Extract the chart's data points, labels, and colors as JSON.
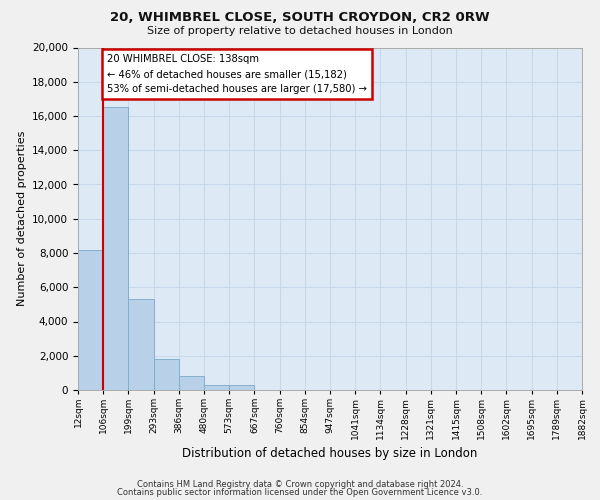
{
  "title1": "20, WHIMBREL CLOSE, SOUTH CROYDON, CR2 0RW",
  "title2": "Size of property relative to detached houses in London",
  "xlabel": "Distribution of detached houses by size in London",
  "ylabel": "Number of detached properties",
  "bin_labels": [
    "12sqm",
    "106sqm",
    "199sqm",
    "293sqm",
    "386sqm",
    "480sqm",
    "573sqm",
    "667sqm",
    "760sqm",
    "854sqm",
    "947sqm",
    "1041sqm",
    "1134sqm",
    "1228sqm",
    "1321sqm",
    "1415sqm",
    "1508sqm",
    "1602sqm",
    "1695sqm",
    "1789sqm",
    "1882sqm"
  ],
  "bar_heights": [
    8200,
    16500,
    5300,
    1820,
    800,
    270,
    270,
    0,
    0,
    0,
    0,
    0,
    0,
    0,
    0,
    0,
    0,
    0,
    0,
    0
  ],
  "bar_color": "#b8d0e8",
  "bar_edge_color": "#7aaac8",
  "property_line_x": 1,
  "annotation_line1": "20 WHIMBREL CLOSE: 138sqm",
  "annotation_line2": "← 46% of detached houses are smaller (15,182)",
  "annotation_line3": "53% of semi-detached houses are larger (17,580) →",
  "annotation_box_color": "#ffffff",
  "annotation_box_edge": "#cc0000",
  "vline_color": "#cc0000",
  "ylim": [
    0,
    20000
  ],
  "yticks": [
    0,
    2000,
    4000,
    6000,
    8000,
    10000,
    12000,
    14000,
    16000,
    18000,
    20000
  ],
  "footer1": "Contains HM Land Registry data © Crown copyright and database right 2024.",
  "footer2": "Contains public sector information licensed under the Open Government Licence v3.0.",
  "grid_color": "#c8d8ea",
  "bg_color": "#ddeaf5",
  "fig_bg_color": "#f0f0f0"
}
